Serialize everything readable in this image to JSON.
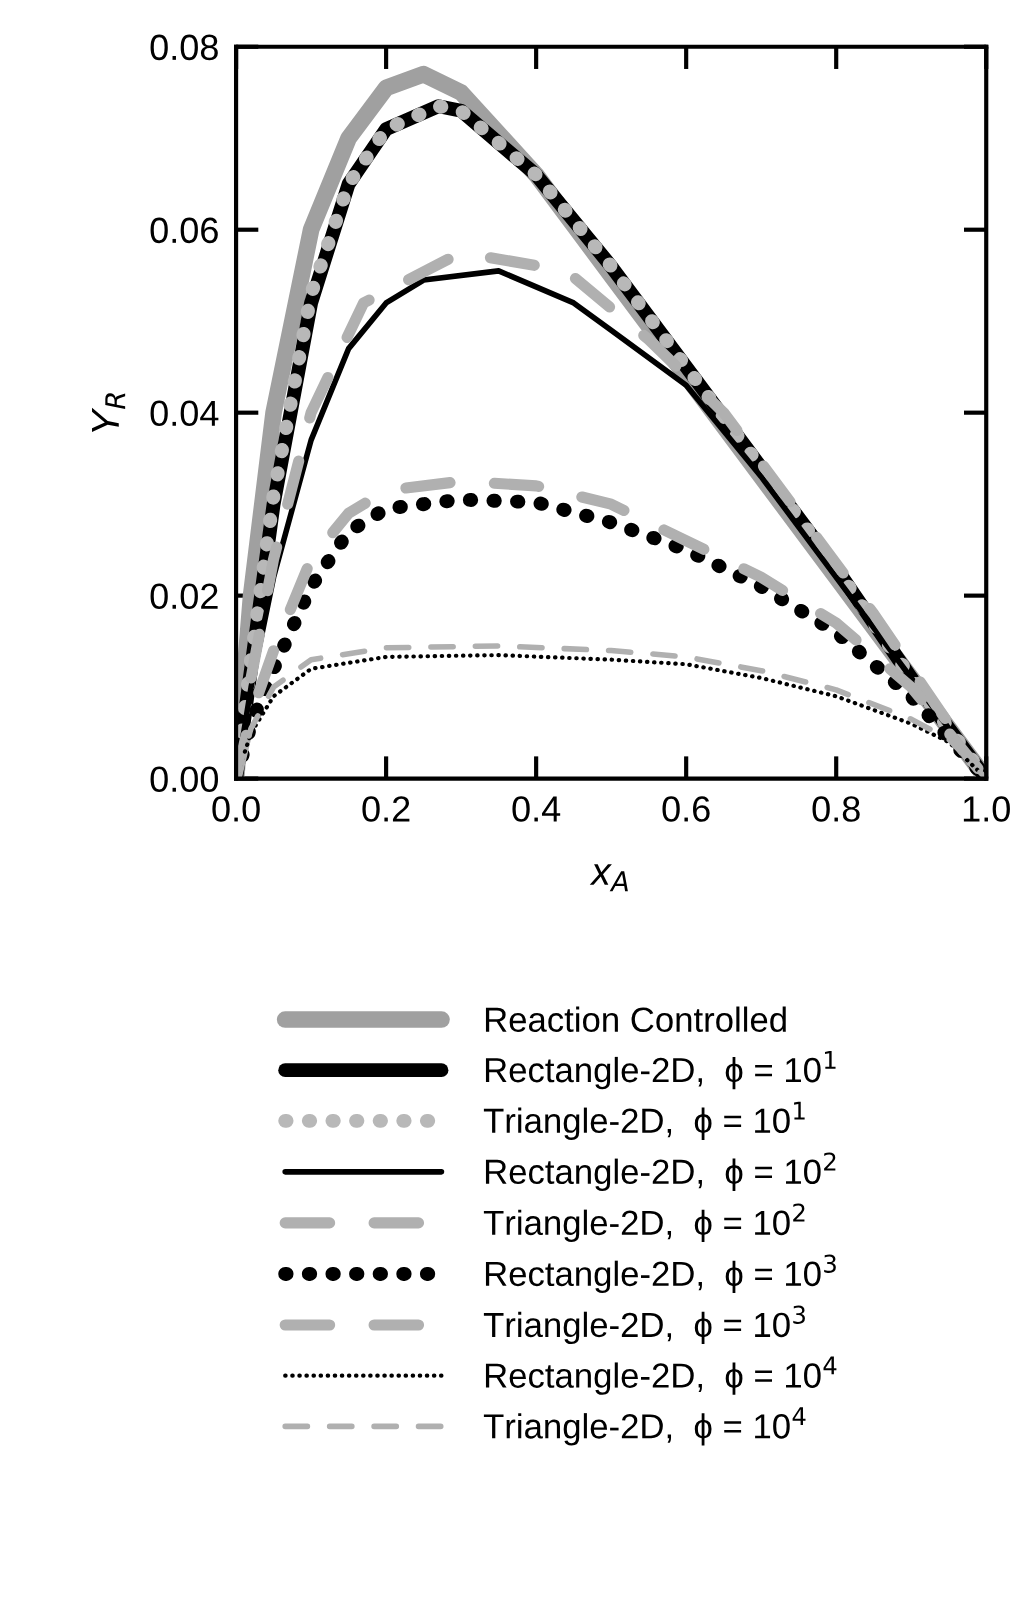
{
  "chart_data": {
    "type": "line",
    "xlabel": "x$_{A}$",
    "ylabel": "Y$_{R}$",
    "xlim": [
      0.0,
      1.0
    ],
    "xticks": [
      {
        "value": 0.0,
        "label": "0.0"
      },
      0.2,
      0.4,
      0.6,
      0.8,
      {
        "value": 1.0,
        "label": "1.0"
      }
    ],
    "ylim": [
      0.0,
      0.08
    ],
    "yticks": [
      {
        "value": 0.0,
        "label": "0.00"
      },
      {
        "value": 0.02,
        "label": "0.02"
      },
      {
        "value": 0.04,
        "label": "0.04"
      },
      {
        "value": 0.06,
        "label": "0.06"
      },
      {
        "value": 0.08,
        "label": "0.08"
      }
    ],
    "grid": false,
    "legend": "bottom",
    "series": [
      {
        "name": "Reaction Controlled",
        "color": "#a0a0a0",
        "line_style": "solid",
        "x": [
          0,
          0.02,
          0.05,
          0.1,
          0.15,
          0.2,
          0.25,
          0.3,
          0.4,
          0.5,
          0.6,
          0.7,
          0.8,
          0.9,
          1.0
        ],
        "values": [
          0,
          0.02,
          0.04,
          0.06,
          0.07,
          0.0755,
          0.077,
          0.075,
          0.066,
          0.055,
          0.044,
          0.033,
          0.022,
          0.011,
          0
        ]
      },
      {
        "name": "Rectangle-2D,  ϕ = 10$^{1}$",
        "color": "#000000",
        "line_style": "solid",
        "x": [
          0,
          0.02,
          0.05,
          0.1,
          0.15,
          0.2,
          0.27,
          0.3,
          0.4,
          0.5,
          0.6,
          0.7,
          0.8,
          0.9,
          1.0
        ],
        "values": [
          0,
          0.012,
          0.03,
          0.052,
          0.065,
          0.071,
          0.0735,
          0.073,
          0.066,
          0.056,
          0.045,
          0.034,
          0.023,
          0.011,
          0
        ]
      },
      {
        "name": "Triangle-2D,  ϕ = 10$^{1}$",
        "color": "#b8b8b8",
        "line_style": "dotted",
        "x": [
          0,
          0.02,
          0.05,
          0.1,
          0.15,
          0.2,
          0.27,
          0.3,
          0.4,
          0.5,
          0.6,
          0.7,
          0.8,
          0.9,
          1.0
        ],
        "values": [
          0,
          0.013,
          0.031,
          0.053,
          0.065,
          0.071,
          0.0735,
          0.073,
          0.066,
          0.056,
          0.045,
          0.034,
          0.023,
          0.011,
          0
        ]
      },
      {
        "name": "Rectangle-2D,  ϕ = 10$^{2}$",
        "color": "#000000",
        "line_style": "solid",
        "x": [
          0,
          0.02,
          0.05,
          0.1,
          0.15,
          0.2,
          0.25,
          0.35,
          0.45,
          0.5,
          0.6,
          0.7,
          0.8,
          0.9,
          1.0
        ],
        "values": [
          0,
          0.01,
          0.022,
          0.037,
          0.047,
          0.052,
          0.0545,
          0.0555,
          0.052,
          0.049,
          0.043,
          0.033,
          0.022,
          0.011,
          0
        ]
      },
      {
        "name": "Triangle-2D,  ϕ = 10$^{2}$",
        "color": "#b0b0b0",
        "line_style": "dashed",
        "x": [
          0.02,
          0.05,
          0.1,
          0.17,
          0.3,
          0.44,
          0.55,
          0.65,
          0.75,
          0.85,
          0.95
        ],
        "values": [
          0.011,
          0.024,
          0.04,
          0.052,
          0.0575,
          0.0555,
          0.048,
          0.04,
          0.029,
          0.018,
          0.006
        ]
      },
      {
        "name": "Rectangle-2D,  ϕ = 10$^{3}$",
        "color": "#000000",
        "line_style": "dotted",
        "x": [
          0,
          0.02,
          0.05,
          0.1,
          0.15,
          0.2,
          0.3,
          0.4,
          0.5,
          0.6,
          0.7,
          0.8,
          0.9,
          1.0
        ],
        "values": [
          0,
          0.006,
          0.012,
          0.021,
          0.027,
          0.0295,
          0.0305,
          0.0302,
          0.028,
          0.025,
          0.021,
          0.016,
          0.009,
          0
        ]
      },
      {
        "name": "Triangle-2D,  ϕ = 10$^{3}$",
        "color": "#b0b0b0",
        "line_style": "dashed",
        "x": [
          0,
          0.02,
          0.05,
          0.1,
          0.15,
          0.2,
          0.3,
          0.4,
          0.5,
          0.6,
          0.7,
          0.8,
          0.9,
          1.0
        ],
        "values": [
          0,
          0.007,
          0.014,
          0.024,
          0.029,
          0.0315,
          0.0325,
          0.032,
          0.03,
          0.026,
          0.022,
          0.017,
          0.01,
          0
        ]
      },
      {
        "name": "Rectangle-2D,  ϕ = 10$^{4}$",
        "color": "#000000",
        "line_style": "dotted",
        "x": [
          0,
          0.02,
          0.05,
          0.1,
          0.2,
          0.35,
          0.5,
          0.6,
          0.7,
          0.8,
          0.9,
          0.95,
          1.0
        ],
        "values": [
          0,
          0.005,
          0.009,
          0.012,
          0.0133,
          0.0135,
          0.013,
          0.0125,
          0.011,
          0.009,
          0.006,
          0.004,
          0
        ]
      },
      {
        "name": "Triangle-2D,  ϕ = 10$^{4}$",
        "color": "#b0b0b0",
        "line_style": "dashed",
        "x": [
          0,
          0.02,
          0.05,
          0.1,
          0.2,
          0.35,
          0.5,
          0.6,
          0.7,
          0.8,
          0.9,
          0.95,
          1.0
        ],
        "values": [
          0,
          0.0055,
          0.01,
          0.013,
          0.0143,
          0.0145,
          0.014,
          0.0133,
          0.0118,
          0.0097,
          0.0065,
          0.0043,
          0
        ]
      }
    ]
  }
}
